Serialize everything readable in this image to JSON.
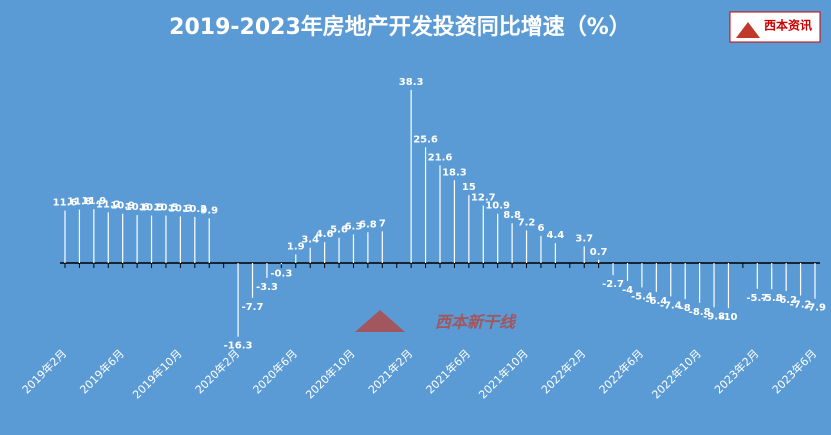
{
  "chart_data": {
    "type": "line",
    "title": "2019-2023年房地产开发投资同比增速（%）",
    "logo": "西本资讯",
    "watermark": "西本新干线",
    "categories": [
      "2019年2月",
      null,
      null,
      null,
      "2019年6月",
      null,
      null,
      null,
      "2019年10月",
      null,
      null,
      null,
      "2020年2月",
      null,
      null,
      null,
      "2020年6月",
      null,
      null,
      null,
      "2020年10月",
      null,
      null,
      null,
      "2021年2月",
      null,
      null,
      null,
      "2021年6月",
      null,
      null,
      null,
      "2021年10月",
      null,
      null,
      null,
      "2022年2月",
      null,
      null,
      null,
      "2022年6月",
      null,
      null,
      null,
      "2022年10月",
      null,
      null,
      null,
      "2023年2月",
      null,
      null,
      null,
      "2023年6月"
    ],
    "series": [
      {
        "name": "同比增速",
        "color": "#ffffff",
        "values": [
          11.6,
          11.8,
          11.9,
          11.2,
          10.9,
          10.6,
          10.5,
          10.5,
          10.3,
          10.2,
          9.9,
          null,
          -16.3,
          -7.7,
          -3.3,
          -0.3,
          1.9,
          3.4,
          4.6,
          5.6,
          6.3,
          6.8,
          7.0,
          null,
          38.3,
          25.6,
          21.6,
          18.3,
          15.0,
          12.7,
          10.9,
          8.8,
          7.2,
          6.0,
          4.4,
          null,
          3.7,
          0.7,
          -2.7,
          -4.0,
          -5.4,
          -6.4,
          -7.4,
          -8.0,
          -8.8,
          -9.8,
          -10.0,
          null,
          -5.7,
          -5.8,
          -6.2,
          -7.2,
          -7.9
        ]
      }
    ],
    "ylim": [
      -20,
      45
    ],
    "background": "#5b9bd5"
  }
}
